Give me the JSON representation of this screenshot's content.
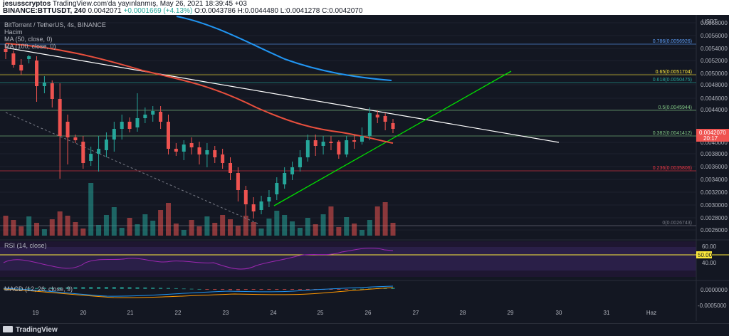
{
  "header": {
    "user": "jesusscryptos",
    "published": "TradingView.com'da yayınlanmış, May 26, 2021 18:39:45 +03",
    "symbol": "BINANCE:BTTUSDT, 240",
    "ohlc": "O:0.0043786 H:0.0044480 L:0.0041278 C:0.0042070",
    "last": "0.0042071",
    "change": "+0.0001669 (+4.13%)"
  },
  "legend": {
    "title": "BitTorrent / TetherUS, 4s, BINANCE",
    "volume": "Hacim",
    "ma50": "MA (50, close, 0)",
    "ma100": "MA (100, close, 0)",
    "rsi": "RSI (14, close)",
    "macd": "MACD (12, 26, close, 9)"
  },
  "axis": {
    "currency": "USDT",
    "price_ticks": [
      "0.0058000",
      "0.0056000",
      "0.0054000",
      "0.0052000",
      "0.0050000",
      "0.0048000",
      "0.0046000",
      "0.0044000",
      "0.0040000",
      "0.0038000",
      "0.0036000",
      "0.0034000",
      "0.0032000",
      "0.0030000",
      "0.0028000",
      "0.0026000"
    ],
    "price_tag": "0.0042070",
    "price_tag_time": "20:17",
    "rsi_ticks": [
      "60.00",
      "40.00"
    ],
    "rsi_tag": "50.00",
    "macd_ticks": [
      "0.0000000",
      "-0.0005000"
    ],
    "dates": [
      "19",
      "20",
      "21",
      "22",
      "23",
      "24",
      "25",
      "26",
      "27",
      "28",
      "29",
      "30",
      "31",
      "Haz"
    ]
  },
  "fib": [
    {
      "label": "0.786(0.0056926)",
      "color": "#5b9cf6"
    },
    {
      "label": "0.65(0.0051704)",
      "color": "#ffeb3b"
    },
    {
      "label": "0.618(0.0050475)",
      "color": "#26a69a"
    },
    {
      "label": "0.5(0.0045944)",
      "color": "#81c784"
    },
    {
      "label": "0.382(0.0041412)",
      "color": "#81c784"
    },
    {
      "label": "0.236(0.0035806)",
      "color": "#f23645"
    },
    {
      "label": "0(0.0026743)",
      "color": "#787b86"
    }
  ],
  "colors": {
    "up": "#26a69a",
    "down": "#ef5350",
    "ma50": "#e84f3d",
    "ma100": "#2196f3",
    "trend": "#ffffff",
    "support": "#00e000",
    "rsi": "#7e57c2"
  },
  "footer": {
    "brand": "TradingView"
  }
}
